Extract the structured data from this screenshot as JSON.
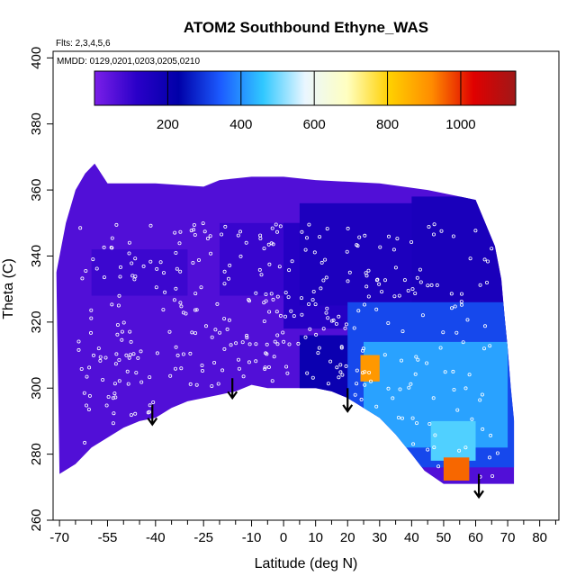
{
  "chart_data": {
    "type": "heatmap",
    "title": "ATOM2 Southbound Ethyne_WAS",
    "annotations": {
      "flights": "Flts: 2,3,4,5,6",
      "dates": "MMDD: 0129,0201,0203,0205,0210"
    },
    "xlabel": "Latitude (deg N)",
    "ylabel": "Theta (C)",
    "xlim": [
      -72,
      86
    ],
    "ylim": [
      260,
      402
    ],
    "x_ticks": [
      -70,
      -55,
      -40,
      -25,
      -10,
      0,
      10,
      20,
      30,
      40,
      50,
      60,
      70,
      80
    ],
    "x_tick_labels": [
      "-70",
      "-55",
      "-40",
      "-25",
      "-10",
      "0",
      "10",
      "20",
      "30",
      "40",
      "50",
      "60",
      "70",
      "80"
    ],
    "y_ticks": [
      260,
      280,
      300,
      320,
      340,
      360,
      380,
      400
    ],
    "y_tick_labels": [
      "260",
      "280",
      "300",
      "320",
      "340",
      "360",
      "380",
      "400"
    ],
    "colorbar": {
      "range": [
        0,
        1150
      ],
      "ticks": [
        200,
        400,
        600,
        800,
        1000
      ],
      "tick_labels": [
        "200",
        "400",
        "600",
        "800",
        "1000"
      ],
      "colors": [
        "#7b1fe8",
        "#2a00c8",
        "#0000a8",
        "#1c5cff",
        "#30c8ff",
        "#eaf6ff",
        "#ffffc0",
        "#ffd000",
        "#ff8c00",
        "#e00000",
        "#a01818"
      ]
    },
    "boundary_top": [
      [
        -71,
        335
      ],
      [
        -68,
        350
      ],
      [
        -65,
        360
      ],
      [
        -62,
        365
      ],
      [
        -59,
        368
      ],
      [
        -55,
        362
      ],
      [
        -40,
        362
      ],
      [
        -25,
        361
      ],
      [
        -20,
        363
      ],
      [
        -10,
        364
      ],
      [
        0,
        364
      ],
      [
        10,
        363
      ],
      [
        30,
        362
      ],
      [
        45,
        360
      ],
      [
        55,
        358
      ],
      [
        60,
        357
      ],
      [
        63,
        350
      ],
      [
        66,
        343
      ],
      [
        68,
        333
      ],
      [
        69,
        322
      ],
      [
        70,
        312
      ],
      [
        71,
        300
      ],
      [
        72,
        290
      ],
      [
        72,
        274
      ]
    ],
    "boundary_bottom": [
      [
        72,
        271
      ],
      [
        60,
        271
      ],
      [
        50,
        271
      ],
      [
        44,
        275
      ],
      [
        40,
        280
      ],
      [
        35,
        286
      ],
      [
        30,
        291
      ],
      [
        25,
        294
      ],
      [
        20,
        297
      ],
      [
        15,
        299
      ],
      [
        10,
        300
      ],
      [
        5,
        300
      ],
      [
        0,
        300
      ],
      [
        -5,
        300
      ],
      [
        -10,
        301
      ],
      [
        -15,
        299
      ],
      [
        -20,
        298
      ],
      [
        -25,
        297
      ],
      [
        -30,
        296
      ],
      [
        -35,
        294
      ],
      [
        -40,
        291
      ],
      [
        -45,
        290
      ],
      [
        -50,
        288
      ],
      [
        -55,
        285
      ],
      [
        -60,
        282
      ],
      [
        -65,
        277
      ],
      [
        -70,
        274
      ]
    ],
    "features": [
      {
        "x": [
          -71,
          72
        ],
        "y": [
          270,
          368
        ],
        "value": 60
      },
      {
        "x": [
          -60,
          -30
        ],
        "y": [
          328,
          342
        ],
        "value": 90
      },
      {
        "x": [
          -20,
          5
        ],
        "y": [
          328,
          350
        ],
        "value": 95
      },
      {
        "x": [
          0,
          30
        ],
        "y": [
          318,
          350
        ],
        "value": 130
      },
      {
        "x": [
          5,
          45
        ],
        "y": [
          325,
          356
        ],
        "value": 150
      },
      {
        "x": [
          5,
          25
        ],
        "y": [
          296,
          316
        ],
        "value": 200
      },
      {
        "x": [
          40,
          70
        ],
        "y": [
          310,
          358
        ],
        "value": 160
      },
      {
        "x": [
          20,
          72
        ],
        "y": [
          276,
          326
        ],
        "value": 320
      },
      {
        "x": [
          25,
          70
        ],
        "y": [
          282,
          314
        ],
        "value": 420
      },
      {
        "x": [
          46,
          60
        ],
        "y": [
          278,
          290
        ],
        "value": 480
      },
      {
        "x": [
          24,
          30
        ],
        "y": [
          302,
          310
        ],
        "value": 900
      },
      {
        "x": [
          50,
          58
        ],
        "y": [
          272,
          279
        ],
        "value": 950
      }
    ],
    "arrows": [
      {
        "x": -41,
        "y_top": 295,
        "y_bottom": 289
      },
      {
        "x": -16,
        "y_top": 303,
        "y_bottom": 297
      },
      {
        "x": 20,
        "y_top": 300,
        "y_bottom": 293
      },
      {
        "x": 61,
        "y_top": 274,
        "y_bottom": 267
      }
    ],
    "grid": false,
    "legend": "top-colorbar"
  }
}
